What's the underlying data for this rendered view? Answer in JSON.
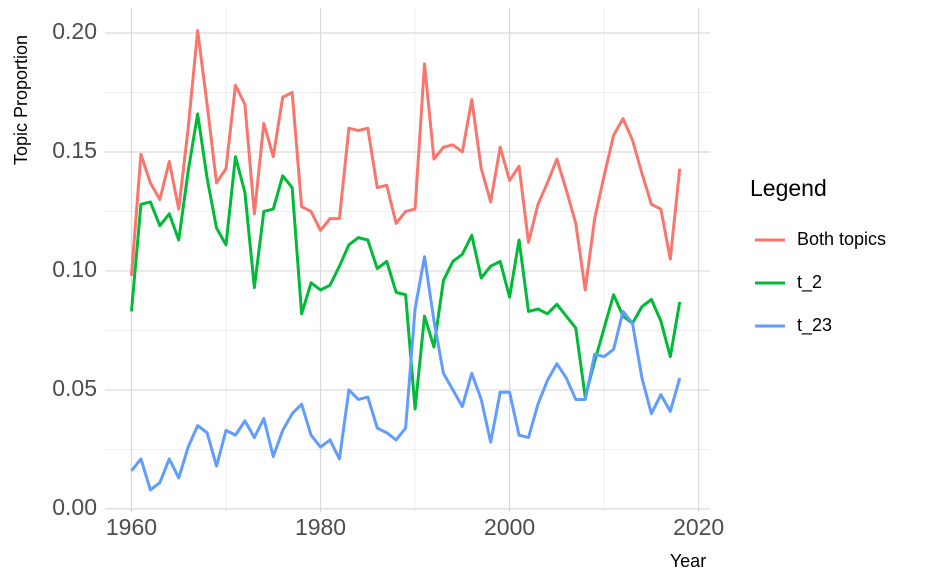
{
  "chart_data": {
    "type": "line",
    "xlabel": "Year",
    "ylabel": "Topic Proportion",
    "legend_title": "Legend",
    "legend_position": "right",
    "grid": true,
    "xlim": [
      1957.2,
      2021.2
    ],
    "ylim": [
      -0.0013,
      0.2105
    ],
    "xticks": [
      1960,
      1980,
      2000,
      2020
    ],
    "minor_xticks": [
      1970,
      1990,
      2010
    ],
    "yticks": [
      {
        "value": 0,
        "label": "0.00"
      },
      {
        "value": 0.05,
        "label": "0.05"
      },
      {
        "value": 0.1,
        "label": "0.10"
      },
      {
        "value": 0.15,
        "label": "0.15"
      },
      {
        "value": 0.2,
        "label": "0.20"
      }
    ],
    "minor_yticks": [
      0.025,
      0.075,
      0.125,
      0.175
    ],
    "x": [
      1960,
      1961,
      1962,
      1963,
      1964,
      1965,
      1966,
      1967,
      1968,
      1969,
      1970,
      1971,
      1972,
      1973,
      1974,
      1975,
      1976,
      1977,
      1978,
      1979,
      1980,
      1981,
      1982,
      1983,
      1984,
      1985,
      1986,
      1987,
      1988,
      1989,
      1990,
      1991,
      1992,
      1993,
      1994,
      1995,
      1996,
      1997,
      1998,
      1999,
      2000,
      2001,
      2002,
      2003,
      2004,
      2005,
      2006,
      2007,
      2008,
      2009,
      2010,
      2011,
      2012,
      2013,
      2014,
      2015,
      2016,
      2017,
      2018
    ],
    "series": [
      {
        "name": "Both topics",
        "color": "#F8766D",
        "values": [
          0.098,
          0.149,
          0.137,
          0.13,
          0.146,
          0.126,
          0.16,
          0.201,
          0.17,
          0.137,
          0.143,
          0.178,
          0.17,
          0.124,
          0.162,
          0.148,
          0.173,
          0.175,
          0.127,
          0.125,
          0.117,
          0.122,
          0.122,
          0.16,
          0.159,
          0.16,
          0.135,
          0.136,
          0.12,
          0.125,
          0.126,
          0.187,
          0.147,
          0.152,
          0.153,
          0.15,
          0.172,
          0.143,
          0.129,
          0.152,
          0.138,
          0.144,
          0.112,
          0.128,
          0.137,
          0.147,
          0.134,
          0.12,
          0.092,
          0.122,
          0.14,
          0.157,
          0.164,
          0.155,
          0.141,
          0.128,
          0.126,
          0.105,
          0.143
        ]
      },
      {
        "name": "t_2",
        "color": "#00BA38",
        "values": [
          0.083,
          0.128,
          0.129,
          0.119,
          0.124,
          0.113,
          0.142,
          0.166,
          0.139,
          0.118,
          0.111,
          0.148,
          0.133,
          0.093,
          0.125,
          0.126,
          0.14,
          0.135,
          0.082,
          0.095,
          0.092,
          0.094,
          0.102,
          0.111,
          0.114,
          0.113,
          0.101,
          0.104,
          0.091,
          0.09,
          0.042,
          0.081,
          0.068,
          0.096,
          0.104,
          0.107,
          0.115,
          0.097,
          0.102,
          0.104,
          0.089,
          0.113,
          0.083,
          0.084,
          0.082,
          0.086,
          0.081,
          0.076,
          0.047,
          0.062,
          0.076,
          0.09,
          0.081,
          0.078,
          0.085,
          0.088,
          0.079,
          0.064,
          0.087
        ]
      },
      {
        "name": "t_23",
        "color": "#619CFF",
        "values": [
          0.016,
          0.021,
          0.008,
          0.011,
          0.021,
          0.013,
          0.026,
          0.035,
          0.032,
          0.018,
          0.033,
          0.031,
          0.037,
          0.03,
          0.038,
          0.022,
          0.033,
          0.04,
          0.044,
          0.031,
          0.026,
          0.029,
          0.021,
          0.05,
          0.046,
          0.047,
          0.034,
          0.032,
          0.029,
          0.034,
          0.084,
          0.106,
          0.079,
          0.057,
          0.05,
          0.043,
          0.057,
          0.046,
          0.028,
          0.049,
          0.049,
          0.031,
          0.03,
          0.044,
          0.054,
          0.061,
          0.055,
          0.046,
          0.046,
          0.065,
          0.064,
          0.067,
          0.083,
          0.078,
          0.055,
          0.04,
          0.048,
          0.041,
          0.055
        ]
      }
    ]
  }
}
